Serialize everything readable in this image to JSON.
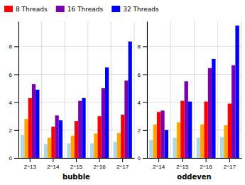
{
  "chart_data": [
    {
      "type": "bar",
      "x_label": "bubble",
      "categories": [
        "2^13",
        "2^14",
        "2^15",
        "2^16",
        "2^17"
      ],
      "series": [
        {
          "color": "#add8e6",
          "values": [
            1.65,
            1.0,
            1.05,
            1.05,
            1.15
          ]
        },
        {
          "color": "#ffa500",
          "values": [
            2.8,
            1.45,
            1.6,
            1.75,
            1.8
          ]
        },
        {
          "name": "8 Threads",
          "color": "#ff0000",
          "values": [
            4.3,
            2.25,
            2.65,
            3.0,
            3.1
          ]
        },
        {
          "name": "16 Threads",
          "color": "#7b00b0",
          "values": [
            5.3,
            3.05,
            4.1,
            5.0,
            5.55
          ]
        },
        {
          "name": "32 Threads",
          "color": "#0000ff",
          "values": [
            4.9,
            2.7,
            4.3,
            6.5,
            8.35
          ]
        }
      ],
      "ylim": [
        0,
        9.8
      ],
      "yticks": [
        0,
        2,
        4,
        6,
        8
      ],
      "grid": true,
      "legend": "upper left"
    },
    {
      "type": "bar",
      "x_label": "oddeven",
      "categories": [
        "2^14",
        "2^15",
        "2^16",
        "2^17"
      ],
      "series": [
        {
          "color": "#add8e6",
          "values": [
            1.3,
            1.45,
            1.45,
            1.5
          ]
        },
        {
          "color": "#ffa500",
          "values": [
            2.4,
            2.55,
            2.4,
            2.35
          ]
        },
        {
          "color": "#ff0000",
          "values": [
            3.3,
            4.1,
            4.05,
            3.9
          ]
        },
        {
          "color": "#7b00b0",
          "values": [
            3.4,
            5.5,
            6.45,
            6.65
          ]
        },
        {
          "color": "#0000ff",
          "values": [
            2.0,
            4.05,
            7.1,
            9.5
          ]
        }
      ],
      "ylim": [
        0,
        9.8
      ],
      "yticks": [
        0,
        2,
        4,
        6,
        8
      ],
      "grid": true
    }
  ]
}
